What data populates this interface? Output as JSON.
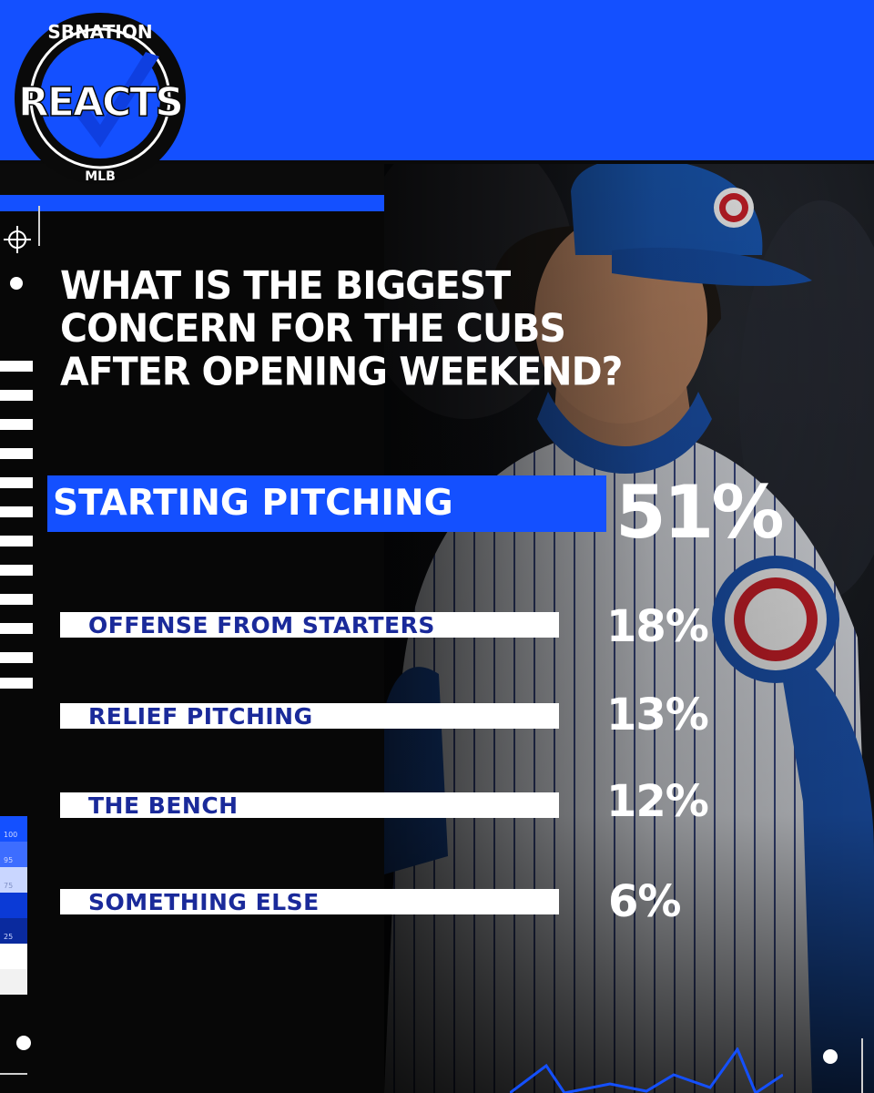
{
  "logo": {
    "top_text": "SBNATION",
    "main_text": "REACTS",
    "bottom_text": "MLB"
  },
  "question": "WHAT IS THE BIGGEST CONCERN FOR THE CUBS AFTER OPENING WEEKEND?",
  "chart_data": {
    "type": "bar",
    "title": "WHAT IS THE BIGGEST CONCERN FOR THE CUBS AFTER OPENING WEEKEND?",
    "categories": [
      "STARTING PITCHING",
      "OFFENSE FROM STARTERS",
      "RELIEF PITCHING",
      "THE BENCH",
      "SOMETHING ELSE"
    ],
    "values": [
      51,
      18,
      13,
      12,
      6
    ],
    "value_labels": [
      "51%",
      "18%",
      "13%",
      "12%",
      "6%"
    ],
    "unit": "%",
    "highlight_index": 0,
    "orientation": "horizontal"
  },
  "swatch_labels": [
    "100",
    "95",
    "75",
    "25"
  ],
  "colors": {
    "brand_blue": "#1450ff",
    "label_navy": "#1a2a9a",
    "bar_white": "#ffffff",
    "background": "#070707"
  },
  "icons": [
    "crosshair-icon",
    "target-dot-icon"
  ]
}
